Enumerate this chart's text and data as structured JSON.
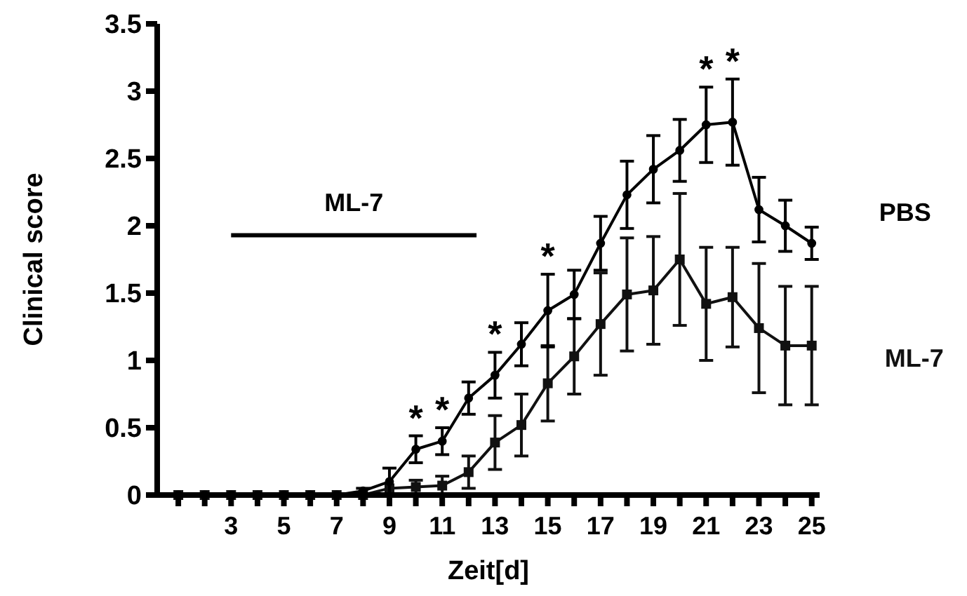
{
  "chart_data": {
    "type": "line",
    "xlabel": "Zeit[d]",
    "ylabel": "Clinical score",
    "x": [
      1,
      2,
      3,
      4,
      5,
      6,
      7,
      8,
      9,
      10,
      11,
      12,
      13,
      14,
      15,
      16,
      17,
      18,
      19,
      20,
      21,
      22,
      23,
      24,
      25
    ],
    "series": [
      {
        "name": "PBS",
        "color": "#000000",
        "marker": "circle",
        "values": [
          0,
          0,
          0,
          0,
          0,
          0,
          0,
          0.03,
          0.1,
          0.34,
          0.4,
          0.72,
          0.89,
          1.12,
          1.37,
          1.49,
          1.87,
          2.23,
          2.42,
          2.56,
          2.75,
          2.77,
          2.12,
          2.0,
          1.87
        ],
        "errors": [
          null,
          null,
          null,
          null,
          null,
          null,
          null,
          0.02,
          0.1,
          0.1,
          0.1,
          0.12,
          0.17,
          0.16,
          0.27,
          0.18,
          0.2,
          0.25,
          0.25,
          0.23,
          0.28,
          0.32,
          0.24,
          0.19,
          0.12
        ]
      },
      {
        "name": "ML-7",
        "color": "#111111",
        "marker": "square",
        "values": [
          0,
          0,
          0,
          0,
          0,
          0,
          0,
          0,
          0.05,
          0.06,
          0.07,
          0.17,
          0.39,
          0.52,
          0.83,
          1.03,
          1.27,
          1.49,
          1.52,
          1.75,
          1.42,
          1.47,
          1.24,
          1.11,
          1.11
        ],
        "errors": [
          null,
          null,
          null,
          null,
          null,
          null,
          null,
          null,
          null,
          0.05,
          0.07,
          0.12,
          0.2,
          0.23,
          0.28,
          0.28,
          0.38,
          0.42,
          0.4,
          0.49,
          0.42,
          0.37,
          0.48,
          0.44,
          0.44
        ]
      },
      {
        "type": "line",
        "color": "#000000",
        "marker": "none",
        "x": [
          3,
          12.3
        ],
        "values": [
          1.93,
          1.93
        ]
      }
    ],
    "xlim": [
      0.2,
      25.3
    ],
    "xticks": [
      {
        "value": 1,
        "label": null
      },
      {
        "value": 2,
        "label": null
      },
      3,
      {
        "value": 4,
        "label": null
      },
      5,
      {
        "value": 6,
        "label": null
      },
      7,
      {
        "value": 8,
        "label": null
      },
      9,
      {
        "value": 10,
        "label": null
      },
      11,
      {
        "value": 12,
        "label": null
      },
      13,
      {
        "value": 14,
        "label": null
      },
      15,
      {
        "value": 16,
        "label": null
      },
      17,
      {
        "value": 18,
        "label": null
      },
      19,
      {
        "value": 20,
        "label": null
      },
      21,
      {
        "value": 22,
        "label": null
      },
      23,
      {
        "value": 24,
        "label": null
      },
      25
    ],
    "ylim": [
      0,
      3.5
    ],
    "yticks": [
      0,
      0.5,
      1,
      1.5,
      2,
      2.5,
      3,
      3.5
    ],
    "annotations": [
      {
        "text": "ML-7",
        "x": 7.65,
        "y": 1.93
      },
      {
        "text": "*",
        "x": 10,
        "y": 0.44
      },
      {
        "text": "*",
        "x": 11,
        "y": 0.5
      },
      {
        "text": "*",
        "x": 13,
        "y": 1.06
      },
      {
        "text": "*",
        "x": 15,
        "y": 1.64
      },
      {
        "text": "*",
        "x": 21,
        "y": 3.03
      },
      {
        "text": "*",
        "x": 22,
        "y": 3.09
      }
    ],
    "grid": false,
    "legend": false
  }
}
